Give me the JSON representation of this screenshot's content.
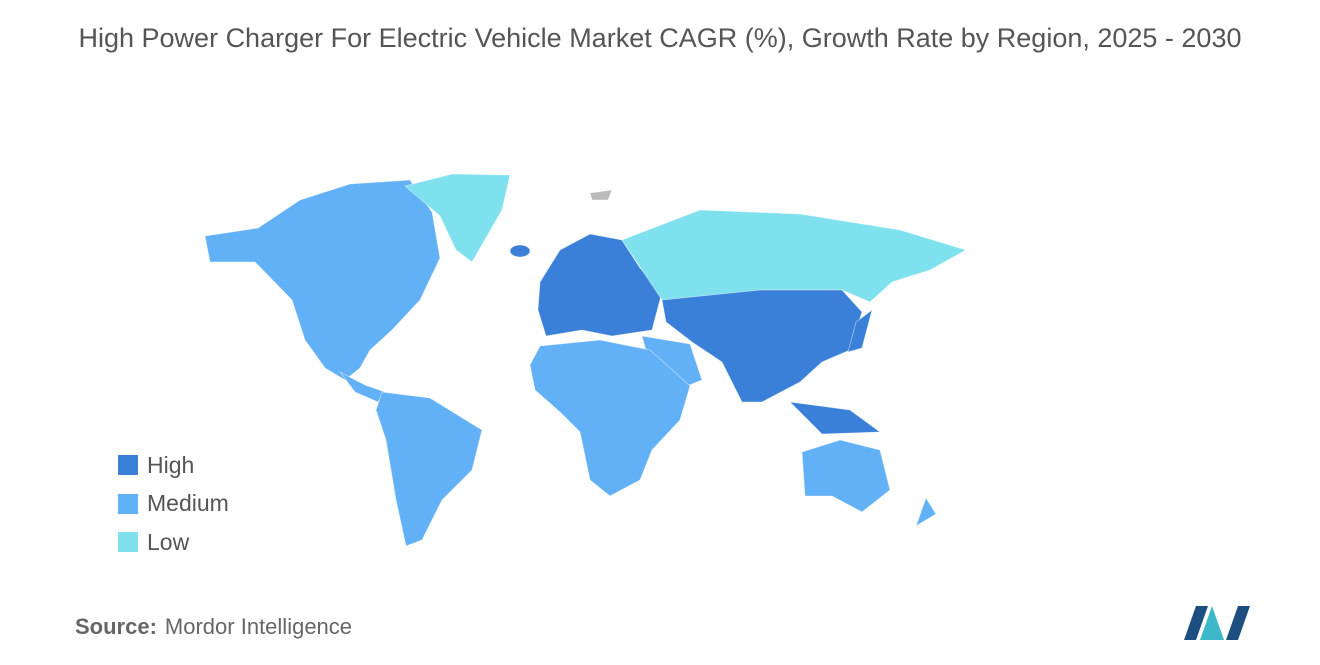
{
  "title": "High Power Charger For Electric Vehicle Market CAGR (%), Growth Rate by Region, 2025 - 2030",
  "legend": [
    {
      "label": "High",
      "color": "#3a7fd8"
    },
    {
      "label": "Medium",
      "color": "#62b1f6"
    },
    {
      "label": "Low",
      "color": "#7fe1ee"
    }
  ],
  "source": {
    "label": "Source:",
    "text": "Mordor Intelligence"
  }
}
